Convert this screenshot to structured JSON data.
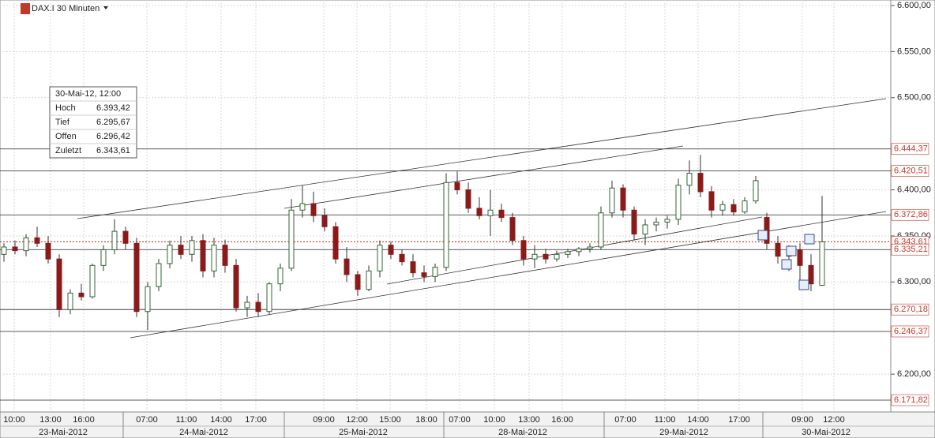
{
  "chart_data": {
    "type": "candlestick",
    "title": "DAX.I 30 Minuten",
    "up_color": "#ffffff",
    "down_color": "#8b1a1a",
    "grid": true,
    "ylim": [
      6159,
      6606
    ],
    "yticks": [
      {
        "value": 6600,
        "label": "6.600,00"
      },
      {
        "value": 6550,
        "label": "6.550,00"
      },
      {
        "value": 6500,
        "label": "6.500,00"
      },
      {
        "value": 6400,
        "label": "6.400,00"
      },
      {
        "value": 6350,
        "label": "6.350,00"
      },
      {
        "value": 6300,
        "label": "6.300,00"
      },
      {
        "value": 6200,
        "label": "6.200,00"
      }
    ],
    "levels": [
      {
        "value": 6444.37,
        "label": "6.444,37"
      },
      {
        "value": 6420.51,
        "label": "6.420,51"
      },
      {
        "value": 6372.86,
        "label": "6.372,86"
      },
      {
        "value": 6343.61,
        "label": "6.343,61"
      },
      {
        "value": 6335.21,
        "label": "6.335,21"
      },
      {
        "value": 6270.18,
        "label": "6.270,18"
      },
      {
        "value": 6246.37,
        "label": "6.246,37"
      },
      {
        "value": 6171.82,
        "label": "6.171,82"
      }
    ],
    "time_labels": [
      "10:00",
      "13:00",
      "16:00",
      "07:00",
      "11:00",
      "14:00",
      "17:00",
      "09:00",
      "12:00",
      "15:00",
      "18:00",
      "07:00",
      "10:00",
      "13:00",
      "16:00",
      "07:00",
      "11:00",
      "14:00",
      "17:00",
      "09:00",
      "12:00"
    ],
    "date_labels": [
      "23-Mai-2012",
      "24-Mai-2012",
      "25-Mai-2012",
      "28-Mai-2012",
      "29-Mai-2012",
      "30-Mai-2012"
    ],
    "info": {
      "header": "30-Mai-12, 12:00",
      "rows": [
        {
          "name": "Hoch",
          "value": "6.393,42"
        },
        {
          "name": "Tief",
          "value": "6.295,67"
        },
        {
          "name": "Offen",
          "value": "6.296,42"
        },
        {
          "name": "Zuletzt",
          "value": "6.343,61"
        }
      ]
    },
    "candles": [
      [
        6330,
        6342,
        6322,
        6338
      ],
      [
        6338,
        6345,
        6330,
        6334
      ],
      [
        6334,
        6352,
        6328,
        6348
      ],
      [
        6348,
        6360,
        6338,
        6342
      ],
      [
        6342,
        6350,
        6320,
        6325
      ],
      [
        6325,
        6330,
        6262,
        6270
      ],
      [
        6270,
        6292,
        6265,
        6288
      ],
      [
        6288,
        6298,
        6280,
        6284
      ],
      [
        6284,
        6320,
        6282,
        6318
      ],
      [
        6318,
        6340,
        6312,
        6335
      ],
      [
        6335,
        6368,
        6330,
        6355
      ],
      [
        6355,
        6360,
        6335,
        6342
      ],
      [
        6342,
        6348,
        6262,
        6268
      ],
      [
        6268,
        6300,
        6248,
        6295
      ],
      [
        6295,
        6325,
        6290,
        6320
      ],
      [
        6320,
        6345,
        6315,
        6340
      ],
      [
        6340,
        6350,
        6325,
        6330
      ],
      [
        6330,
        6350,
        6322,
        6345
      ],
      [
        6345,
        6352,
        6305,
        6312
      ],
      [
        6312,
        6348,
        6305,
        6340
      ],
      [
        6340,
        6346,
        6310,
        6318
      ],
      [
        6318,
        6325,
        6268,
        6272
      ],
      [
        6272,
        6285,
        6262,
        6278
      ],
      [
        6278,
        6288,
        6262,
        6268
      ],
      [
        6268,
        6300,
        6265,
        6298
      ],
      [
        6298,
        6320,
        6290,
        6315
      ],
      [
        6315,
        6390,
        6312,
        6378
      ],
      [
        6378,
        6405,
        6370,
        6385
      ],
      [
        6385,
        6398,
        6365,
        6372
      ],
      [
        6372,
        6380,
        6355,
        6360
      ],
      [
        6360,
        6365,
        6320,
        6325
      ],
      [
        6325,
        6338,
        6300,
        6308
      ],
      [
        6308,
        6312,
        6285,
        6292
      ],
      [
        6292,
        6318,
        6290,
        6312
      ],
      [
        6312,
        6345,
        6305,
        6340
      ],
      [
        6340,
        6344,
        6325,
        6330
      ],
      [
        6330,
        6335,
        6318,
        6322
      ],
      [
        6322,
        6330,
        6305,
        6310
      ],
      [
        6310,
        6318,
        6300,
        6306
      ],
      [
        6306,
        6320,
        6300,
        6316
      ],
      [
        6316,
        6418,
        6312,
        6408
      ],
      [
        6408,
        6420,
        6395,
        6400
      ],
      [
        6400,
        6408,
        6375,
        6380
      ],
      [
        6380,
        6392,
        6368,
        6372
      ],
      [
        6372,
        6400,
        6350,
        6378
      ],
      [
        6378,
        6385,
        6365,
        6370
      ],
      [
        6370,
        6375,
        6340,
        6345
      ],
      [
        6345,
        6350,
        6318,
        6325
      ],
      [
        6325,
        6340,
        6315,
        6330
      ],
      [
        6330,
        6336,
        6320,
        6325
      ],
      [
        6325,
        6334,
        6322,
        6330
      ],
      [
        6330,
        6336,
        6326,
        6333
      ],
      [
        6333,
        6338,
        6328,
        6336
      ],
      [
        6336,
        6342,
        6332,
        6338
      ],
      [
        6338,
        6382,
        6335,
        6375
      ],
      [
        6375,
        6410,
        6370,
        6402
      ],
      [
        6402,
        6406,
        6370,
        6378
      ],
      [
        6378,
        6382,
        6345,
        6352
      ],
      [
        6352,
        6368,
        6340,
        6362
      ],
      [
        6362,
        6370,
        6355,
        6365
      ],
      [
        6365,
        6372,
        6358,
        6368
      ],
      [
        6368,
        6412,
        6362,
        6405
      ],
      [
        6405,
        6432,
        6395,
        6418
      ],
      [
        6418,
        6438,
        6392,
        6398
      ],
      [
        6398,
        6404,
        6370,
        6378
      ],
      [
        6378,
        6388,
        6372,
        6384
      ],
      [
        6384,
        6390,
        6372,
        6376
      ],
      [
        6376,
        6392,
        6374,
        6388
      ],
      [
        6388,
        6415,
        6385,
        6410
      ],
      [
        6370,
        6375,
        6335,
        6342
      ],
      [
        6342,
        6350,
        6320,
        6328
      ],
      [
        6328,
        6340,
        6312,
        6335
      ],
      [
        6335,
        6342,
        6300,
        6318
      ],
      [
        6318,
        6330,
        6290,
        6298
      ],
      [
        6296.42,
        6393.42,
        6295.67,
        6343.61
      ]
    ]
  }
}
